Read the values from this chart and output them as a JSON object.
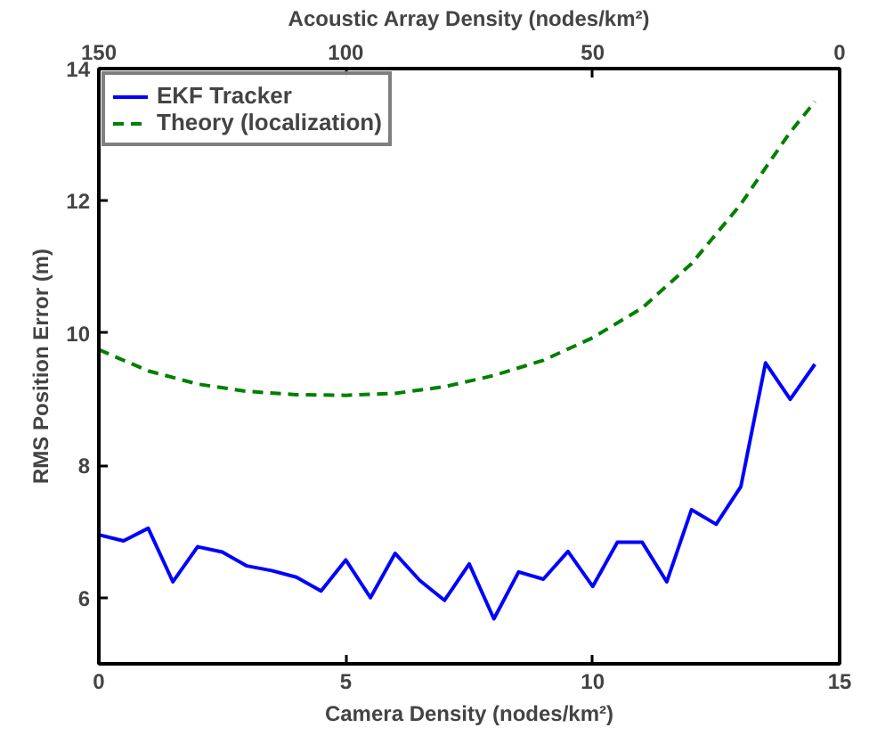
{
  "chart_data": {
    "type": "line",
    "xlabel": "Camera Density (nodes/km²)",
    "ylabel": "RMS Position Error (m)",
    "x2label": "Acoustic Array Density (nodes/km²)",
    "xlim": [
      0,
      15
    ],
    "xticks": [
      0,
      5,
      10,
      15
    ],
    "ylim": [
      5,
      14
    ],
    "yticks": [
      6,
      8,
      10,
      12,
      14
    ],
    "x2lim": [
      150,
      0
    ],
    "x2ticks": [
      150,
      100,
      50,
      0
    ],
    "grid": false,
    "legend": "top left",
    "series": [
      {
        "name": "EKF Tracker",
        "color": "#0000ff",
        "line_style": "solid",
        "x": [
          0,
          0.5,
          1,
          1.5,
          2,
          2.5,
          3,
          3.5,
          4,
          4.5,
          5,
          5.5,
          6,
          6.5,
          7,
          7.5,
          8,
          8.5,
          9,
          9.5,
          10,
          10.5,
          11,
          11.5,
          12,
          12.5,
          13,
          13.5,
          14,
          14.5
        ],
        "values": [
          6.95,
          6.86,
          7.05,
          6.24,
          6.77,
          6.69,
          6.48,
          6.41,
          6.31,
          6.1,
          6.57,
          6.0,
          6.67,
          6.26,
          5.96,
          6.51,
          5.68,
          6.39,
          6.28,
          6.7,
          6.17,
          6.84,
          6.84,
          6.24,
          7.33,
          7.11,
          7.68,
          9.55,
          9.0,
          9.53
        ]
      },
      {
        "name": "Theory (localization)",
        "color": "#008000",
        "line_style": "dashed",
        "x": [
          0,
          1,
          2,
          3,
          4,
          5,
          6,
          7,
          8,
          9,
          10,
          11,
          12,
          13,
          13.5,
          14,
          14.5
        ],
        "values": [
          9.75,
          9.43,
          9.23,
          9.12,
          9.07,
          9.06,
          9.09,
          9.19,
          9.36,
          9.59,
          9.93,
          10.38,
          11.05,
          11.95,
          12.5,
          13.04,
          13.5
        ]
      }
    ]
  }
}
